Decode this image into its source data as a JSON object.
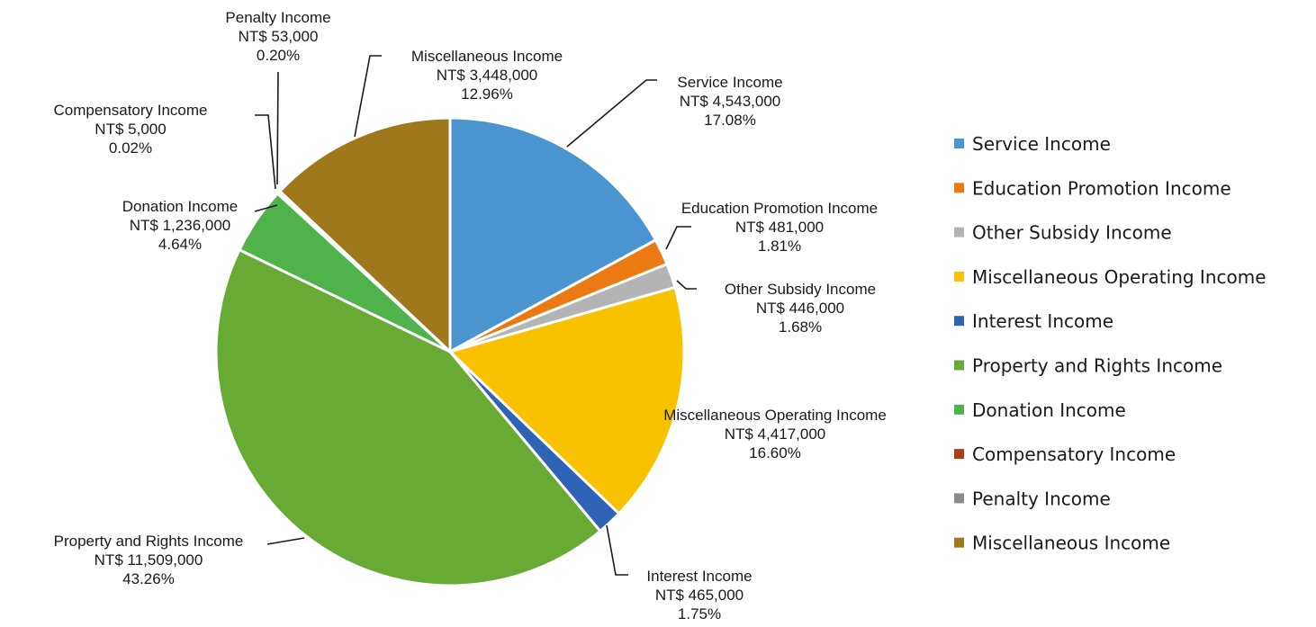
{
  "chart_data": {
    "type": "pie",
    "title": "",
    "currency_prefix": "NT$",
    "legend_position": "right",
    "slices": [
      {
        "name": "Service Income",
        "value": 4543000,
        "value_label": "NT$ 4,543,000",
        "percent_label": "17.08%",
        "color": "#4a95d0"
      },
      {
        "name": "Education Promotion Income",
        "value": 481000,
        "value_label": "NT$ 481,000",
        "percent_label": "1.81%",
        "color": "#ec7a12"
      },
      {
        "name": "Other Subsidy Income",
        "value": 446000,
        "value_label": "NT$ 446,000",
        "percent_label": "1.68%",
        "color": "#b4b4b4"
      },
      {
        "name": "Miscellaneous Operating Income",
        "value": 4417000,
        "value_label": "NT$ 4,417,000",
        "percent_label": "16.60%",
        "color": "#f9c200"
      },
      {
        "name": "Interest Income",
        "value": 465000,
        "value_label": "NT$ 465,000",
        "percent_label": "1.75%",
        "color": "#2e63b6"
      },
      {
        "name": "Property and Rights Income",
        "value": 11509000,
        "value_label": "NT$ 11,509,000",
        "percent_label": "43.26%",
        "color": "#67ab34"
      },
      {
        "name": "Donation Income",
        "value": 1236000,
        "value_label": "NT$ 1,236,000",
        "percent_label": "4.64%",
        "color": "#4fb24a"
      },
      {
        "name": "Compensatory Income",
        "value": 5000,
        "value_label": "NT$ 5,000",
        "percent_label": "0.02%",
        "color": "#a8401a"
      },
      {
        "name": "Penalty Income",
        "value": 53000,
        "value_label": "NT$ 53,000",
        "percent_label": "0.20%",
        "color": "#8b8b8b"
      },
      {
        "name": "Miscellaneous Income",
        "value": 3448000,
        "value_label": "NT$ 3,448,000",
        "percent_label": "12.96%",
        "color": "#a0781c"
      }
    ]
  }
}
